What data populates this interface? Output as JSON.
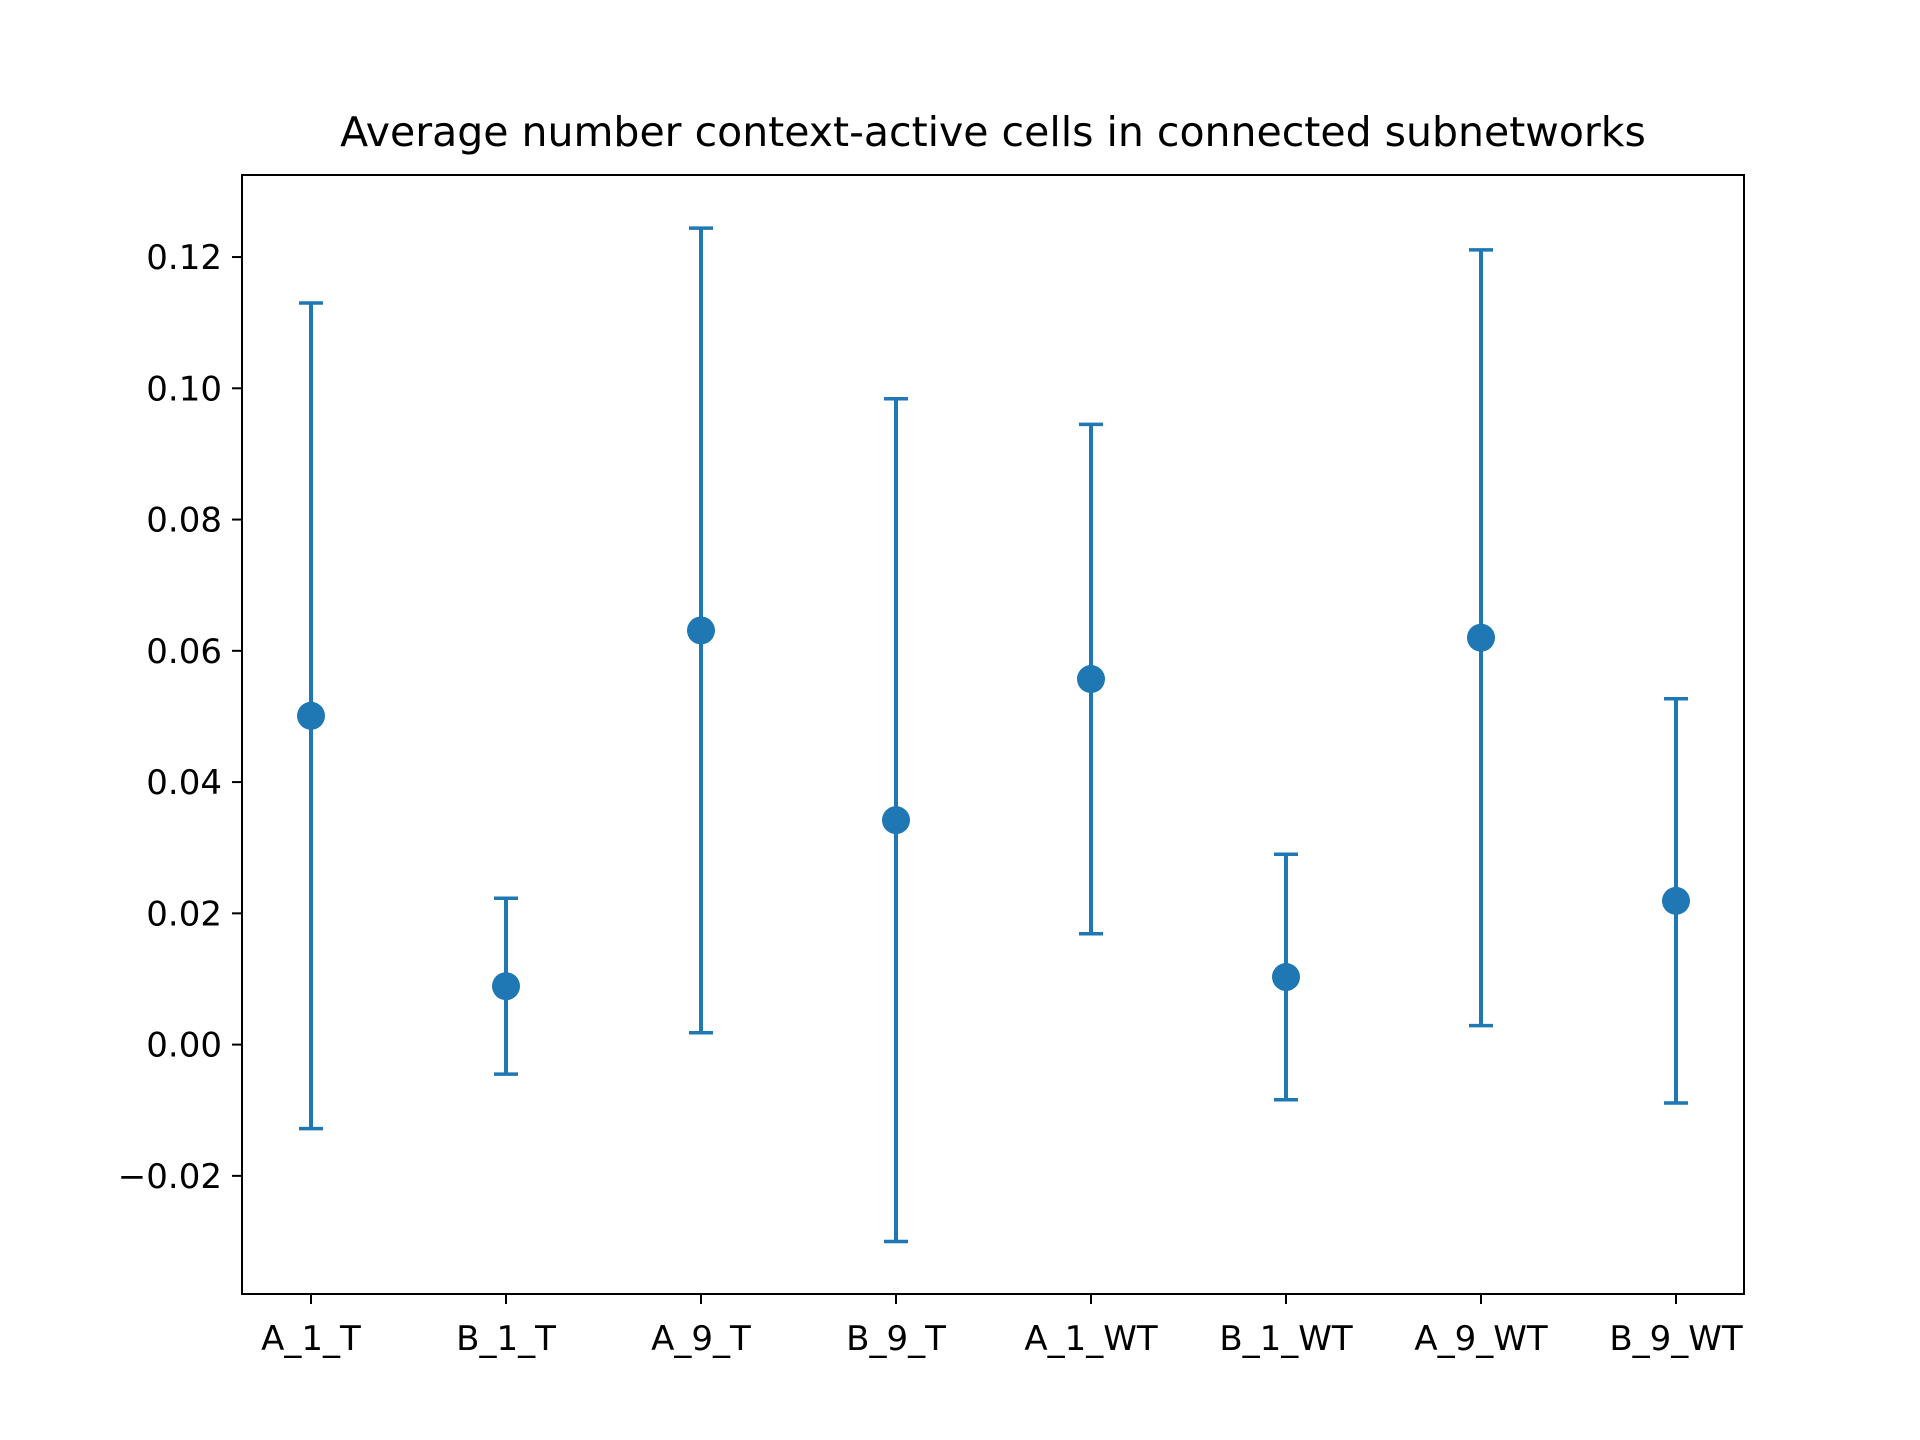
{
  "chart_data": {
    "type": "errorbar",
    "title": "Average number context-active cells in connected subnetworks",
    "xlabel": "",
    "ylabel": "",
    "categories": [
      "A_1_T",
      "B_1_T",
      "A_9_T",
      "B_9_T",
      "A_1_WT",
      "B_1_WT",
      "A_9_WT",
      "B_9_WT"
    ],
    "means": [
      0.0501,
      0.0089,
      0.0631,
      0.0342,
      0.0557,
      0.0103,
      0.062,
      0.0219
    ],
    "errors": [
      0.0629,
      0.0134,
      0.0613,
      0.0642,
      0.0388,
      0.0187,
      0.0591,
      0.0308
    ],
    "ylim": [
      -0.038,
      0.1325
    ],
    "yticks": [
      -0.02,
      0.0,
      0.02,
      0.04,
      0.06,
      0.08,
      0.1,
      0.12
    ],
    "ytick_labels": [
      "−0.02",
      "0.00",
      "0.02",
      "0.04",
      "0.06",
      "0.08",
      "0.10",
      "0.12"
    ],
    "grid": false,
    "legend": "none",
    "color": "#1f77b4"
  }
}
